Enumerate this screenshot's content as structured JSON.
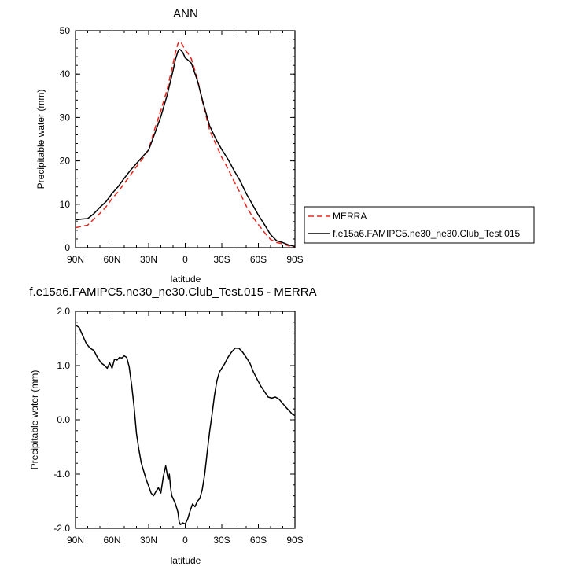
{
  "chart_data": [
    {
      "type": "line",
      "title": "ANN",
      "xlabel": "latitude",
      "ylabel": "Precipitable water (mm)",
      "xlim": [
        90,
        -90
      ],
      "ylim": [
        0,
        50
      ],
      "x_ticks": [
        90,
        60,
        30,
        0,
        -30,
        -60,
        -90
      ],
      "x_tick_labels": [
        "90N",
        "60N",
        "30N",
        "0",
        "30S",
        "60S",
        "90S"
      ],
      "y_ticks": [
        0,
        10,
        20,
        30,
        40,
        50
      ],
      "y_tick_labels": [
        "0",
        "10",
        "20",
        "30",
        "40",
        "50"
      ],
      "legend_placement": "right",
      "series": [
        {
          "name": "MERRA",
          "color": "#e8231c",
          "dash": true,
          "x": [
            90,
            85,
            80,
            75,
            70,
            65,
            60,
            55,
            50,
            45,
            40,
            35,
            30,
            25,
            20,
            15,
            10,
            8,
            6,
            5,
            4,
            2,
            0,
            -2,
            -5,
            -10,
            -15,
            -20,
            -25,
            -30,
            -35,
            -40,
            -45,
            -50,
            -55,
            -60,
            -65,
            -70,
            -75,
            -80,
            -85,
            -90
          ],
          "y": [
            4.6,
            4.9,
            5.2,
            6.6,
            7.9,
            9.4,
            11.3,
            12.9,
            14.8,
            16.7,
            18.7,
            20.5,
            22.6,
            27.4,
            31.6,
            36.3,
            42.4,
            45.0,
            47.0,
            47.5,
            47.5,
            46.6,
            45.5,
            44.9,
            43.5,
            38.9,
            32.6,
            27.1,
            23.9,
            20.8,
            18.2,
            15.3,
            12.6,
            9.6,
            7.2,
            5.3,
            3.5,
            1.9,
            1.2,
            0.9,
            0.4,
            0.2
          ]
        },
        {
          "name": "f.e15a6.FAMIPC5.ne30_ne30.Club_Test.015",
          "color": "#000000",
          "dash": false,
          "x": [
            90,
            85,
            80,
            75,
            70,
            65,
            60,
            55,
            50,
            45,
            40,
            35,
            30,
            25,
            20,
            15,
            10,
            8,
            6,
            5,
            4,
            2,
            0,
            -2,
            -5,
            -10,
            -15,
            -20,
            -25,
            -30,
            -35,
            -40,
            -45,
            -50,
            -55,
            -60,
            -65,
            -70,
            -75,
            -80,
            -85,
            -90
          ],
          "y": [
            6.4,
            6.6,
            6.7,
            7.8,
            9.3,
            10.6,
            12.5,
            14.1,
            16.0,
            17.8,
            19.4,
            21.0,
            22.5,
            26.3,
            30.2,
            35.0,
            40.8,
            43.4,
            45.2,
            45.7,
            45.6,
            45.0,
            43.7,
            43.3,
            42.5,
            38.5,
            33.0,
            28.1,
            25.1,
            22.6,
            20.4,
            17.8,
            15.4,
            12.5,
            10.0,
            7.5,
            5.3,
            3.0,
            1.6,
            1.2,
            0.6,
            0.3
          ]
        }
      ]
    },
    {
      "type": "line",
      "title": "f.e15a6.FAMIPC5.ne30_ne30.Club_Test.015 - MERRA",
      "xlabel": "latitude",
      "ylabel": "Precipitable water (mm)",
      "xlim": [
        90,
        -90
      ],
      "ylim": [
        -2,
        2
      ],
      "x_ticks": [
        90,
        60,
        30,
        0,
        -30,
        -60,
        -90
      ],
      "x_tick_labels": [
        "90N",
        "60N",
        "30N",
        "0",
        "30S",
        "60S",
        "90S"
      ],
      "y_ticks": [
        -2,
        -1,
        0,
        1,
        2
      ],
      "y_tick_labels": [
        "-2.0",
        "-1.0",
        "0.0",
        "1.0",
        "2.0"
      ],
      "series": [
        {
          "color": "#000000",
          "dash": false,
          "x": [
            90,
            87,
            84,
            81,
            78,
            75,
            72,
            69,
            66,
            64,
            62,
            60,
            58,
            56,
            54,
            52,
            50,
            48,
            46,
            44,
            42,
            40,
            38,
            36,
            34,
            32,
            30,
            28,
            26,
            24,
            22,
            20,
            18,
            16,
            14,
            13,
            12,
            11,
            10,
            8,
            6,
            5,
            4,
            2,
            0,
            -2,
            -4,
            -6,
            -8,
            -10,
            -12,
            -14,
            -16,
            -18,
            -20,
            -22,
            -24,
            -26,
            -28,
            -30,
            -32,
            -35,
            -38,
            -41,
            -44,
            -47,
            -50,
            -53,
            -56,
            -59,
            -62,
            -65,
            -68,
            -71,
            -74,
            -77,
            -80,
            -83,
            -86,
            -88,
            -90
          ],
          "y": [
            1.75,
            1.7,
            1.55,
            1.4,
            1.32,
            1.28,
            1.15,
            1.05,
            1.0,
            0.95,
            1.05,
            0.95,
            1.12,
            1.1,
            1.15,
            1.14,
            1.18,
            1.15,
            0.98,
            0.65,
            0.25,
            -0.25,
            -0.55,
            -0.8,
            -0.95,
            -1.1,
            -1.22,
            -1.35,
            -1.4,
            -1.32,
            -1.25,
            -1.35,
            -1.05,
            -0.85,
            -1.1,
            -1.0,
            -1.25,
            -1.4,
            -1.45,
            -1.55,
            -1.7,
            -1.88,
            -1.93,
            -1.9,
            -1.92,
            -1.83,
            -1.68,
            -1.55,
            -1.6,
            -1.5,
            -1.45,
            -1.28,
            -1.0,
            -0.6,
            -0.22,
            0.1,
            0.45,
            0.72,
            0.88,
            0.95,
            1.02,
            1.15,
            1.25,
            1.32,
            1.32,
            1.25,
            1.15,
            1.05,
            0.88,
            0.75,
            0.62,
            0.52,
            0.42,
            0.4,
            0.42,
            0.38,
            0.3,
            0.22,
            0.15,
            0.1,
            0.08
          ]
        }
      ]
    }
  ]
}
